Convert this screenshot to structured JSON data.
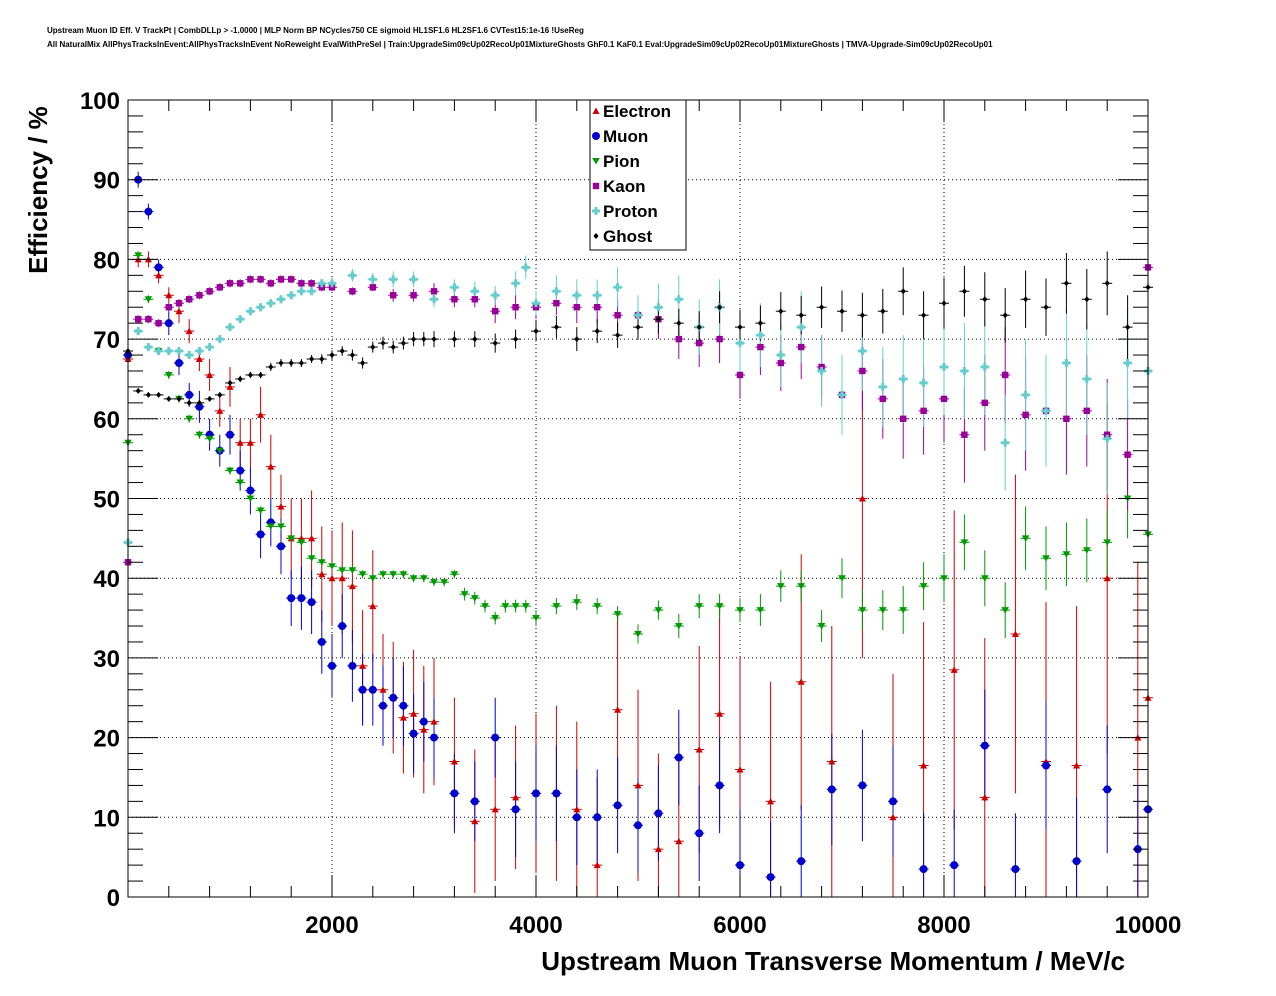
{
  "header": {
    "line1": "Upstream Muon ID Eff. V TrackPt | CombDLLp > -1.0000 | MLP Norm BP NCycles750 CE sigmoid HL1SF1.6 HL2SF1.6 CVTest15:1e-16 !UseReg",
    "line2": "All NaturalMix AllPhysTracksInEvent:AllPhysTracksInEvent NoReweight EvalWithPreSel | Train:UpgradeSim09cUp02RecoUp01MixtureGhosts GhF0.1 KaF0.1 Eval:UpgradeSim09cUp02RecoUp01MixtureGhosts | TMVA-Upgrade-Sim09cUp02RecoUp01"
  },
  "chart_data": {
    "type": "scatter",
    "xlabel": "Upstream Muon Transverse Momentum / MeV/c",
    "ylabel": "Efficiency / %",
    "xlim": [
      0,
      10000
    ],
    "ylim": [
      0,
      100
    ],
    "x_ticks": [
      2000,
      4000,
      6000,
      8000,
      10000
    ],
    "y_ticks": [
      0,
      10,
      20,
      30,
      40,
      50,
      60,
      70,
      80,
      90,
      100
    ],
    "grid": true,
    "legend_position": "top-center",
    "series": [
      {
        "name": "Electron",
        "color": "#cc0000",
        "marker": "triangle-up",
        "x": [
          0,
          100,
          200,
          300,
          400,
          500,
          600,
          700,
          800,
          900,
          1000,
          1100,
          1200,
          1300,
          1400,
          1500,
          1600,
          1700,
          1800,
          1900,
          2000,
          2100,
          2200,
          2300,
          2400,
          2500,
          2600,
          2700,
          2800,
          2900,
          3000,
          3200,
          3400,
          3600,
          3800,
          4000,
          4200,
          4400,
          4600,
          4800,
          5000,
          5200,
          5400,
          5600,
          5800,
          6000,
          6300,
          6600,
          6900,
          7200,
          7500,
          7800,
          8100,
          8400,
          8700,
          9000,
          9300,
          9600,
          9900,
          10000
        ],
        "y": [
          67.5,
          80,
          80,
          78,
          75.5,
          73.5,
          71,
          67.5,
          65.5,
          61,
          64,
          57,
          57,
          60.5,
          54,
          49,
          45,
          45,
          45,
          40.5,
          40,
          40,
          39,
          29,
          36.5,
          26,
          25,
          22.5,
          23,
          21,
          22,
          17,
          9.5,
          11,
          12.5,
          13,
          13,
          11,
          4,
          23.5,
          14,
          6,
          7,
          18.5,
          23,
          16,
          12,
          27,
          17,
          50,
          10,
          16.5,
          28.5,
          12.5,
          33,
          17,
          16.5,
          40,
          20,
          25
        ],
        "err": [
          3,
          1,
          1,
          1,
          1,
          1.5,
          1.5,
          1.5,
          2,
          2,
          2.5,
          3,
          3,
          3.5,
          4,
          4,
          5,
          5,
          6,
          6,
          6,
          7,
          7,
          7,
          7,
          7,
          7,
          7,
          8,
          8,
          8,
          8,
          9,
          9,
          9,
          10,
          11,
          11,
          11,
          12,
          12,
          12,
          13,
          13,
          14,
          14,
          15,
          16,
          17,
          20,
          18,
          18,
          20,
          20,
          20,
          20,
          20,
          22,
          22,
          22
        ]
      },
      {
        "name": "Muon",
        "color": "#0000cc",
        "marker": "circle",
        "x": [
          0,
          100,
          200,
          300,
          400,
          500,
          600,
          700,
          800,
          900,
          1000,
          1100,
          1200,
          1300,
          1400,
          1500,
          1600,
          1700,
          1800,
          1900,
          2000,
          2100,
          2200,
          2300,
          2400,
          2500,
          2600,
          2700,
          2800,
          2900,
          3000,
          3200,
          3400,
          3600,
          3800,
          4000,
          4200,
          4400,
          4600,
          4800,
          5000,
          5200,
          5400,
          5600,
          5800,
          6000,
          6300,
          6600,
          6900,
          7200,
          7500,
          7800,
          8100,
          8400,
          8700,
          9000,
          9300,
          9600,
          9900,
          10000
        ],
        "y": [
          68,
          90,
          86,
          79,
          72,
          67,
          63,
          61.5,
          58,
          56,
          58,
          53.5,
          51,
          45.5,
          47,
          44,
          37.5,
          37.5,
          37,
          32,
          29,
          34,
          29,
          26,
          26,
          24,
          25,
          24,
          20.5,
          22,
          20,
          13,
          12,
          20,
          11,
          13,
          13,
          10,
          10,
          11.5,
          9,
          10.5,
          17.5,
          8,
          14,
          4,
          2.5,
          4.5,
          13.5,
          14,
          12,
          3.5,
          4,
          19,
          3.5,
          16.5,
          4.5,
          13.5,
          6,
          11
        ],
        "err": [
          1.5,
          1,
          1,
          1,
          1.5,
          1.5,
          1.5,
          2,
          2,
          2,
          2.5,
          2.5,
          3,
          3,
          3,
          3.5,
          3.5,
          4,
          4,
          4,
          4,
          4,
          4.5,
          4.5,
          4.5,
          5,
          5,
          5,
          5,
          5,
          5,
          5,
          5,
          5,
          6,
          6,
          6,
          6,
          6,
          6,
          6,
          6,
          6,
          6,
          6,
          7,
          7,
          7,
          7,
          7,
          7,
          7,
          7,
          7,
          7,
          8,
          8,
          8,
          8,
          8
        ]
      },
      {
        "name": "Pion",
        "color": "#009900",
        "marker": "triangle-down",
        "x": [
          0,
          100,
          200,
          300,
          400,
          500,
          600,
          700,
          800,
          900,
          1000,
          1100,
          1200,
          1300,
          1400,
          1500,
          1600,
          1700,
          1800,
          1900,
          2000,
          2100,
          2200,
          2300,
          2400,
          2500,
          2600,
          2700,
          2800,
          2900,
          3000,
          3100,
          3200,
          3300,
          3400,
          3500,
          3600,
          3700,
          3800,
          3900,
          4000,
          4200,
          4400,
          4600,
          4800,
          5000,
          5200,
          5400,
          5600,
          5800,
          6000,
          6200,
          6400,
          6600,
          6800,
          7000,
          7200,
          7400,
          7600,
          7800,
          8000,
          8200,
          8400,
          8600,
          8800,
          9000,
          9200,
          9400,
          9600,
          9800,
          10000
        ],
        "y": [
          57,
          80.5,
          75,
          68.5,
          65.5,
          62.5,
          60,
          58,
          57.5,
          56,
          53.5,
          52,
          50,
          48.5,
          46.5,
          46.5,
          45,
          44.5,
          42.5,
          42,
          41.5,
          41,
          41,
          40.5,
          40,
          40.5,
          40.5,
          40.5,
          40,
          40,
          39.5,
          39.5,
          40.5,
          38,
          37.5,
          36.5,
          35,
          36.5,
          36.5,
          36.5,
          35,
          36.5,
          37,
          36.5,
          35.5,
          33,
          36,
          34,
          36.5,
          36.5,
          36,
          36,
          39,
          39,
          34,
          40,
          36,
          36,
          36,
          39,
          40,
          44.5,
          40,
          36,
          45,
          42.5,
          43,
          43.5,
          44.5,
          50,
          45.5
        ],
        "err": [
          1,
          0.5,
          0.5,
          0.5,
          0.5,
          0.5,
          0.5,
          0.5,
          0.5,
          0.5,
          0.5,
          0.5,
          0.5,
          0.5,
          0.5,
          0.5,
          0.5,
          0.5,
          0.5,
          0.5,
          0.5,
          0.5,
          0.5,
          0.5,
          0.5,
          0.5,
          0.5,
          0.5,
          0.5,
          0.5,
          0.5,
          0.5,
          0.5,
          0.8,
          0.8,
          0.8,
          0.8,
          0.8,
          0.8,
          0.8,
          1,
          1,
          1,
          1,
          1,
          1.2,
          1.2,
          1.5,
          1.5,
          1.5,
          1.5,
          2,
          2,
          2,
          2,
          2.5,
          2.5,
          2.5,
          3,
          3,
          3,
          3.5,
          3.5,
          3.5,
          4,
          4,
          4,
          4,
          4,
          5,
          5
        ]
      },
      {
        "name": "Kaon",
        "color": "#990099",
        "marker": "square",
        "x": [
          0,
          100,
          200,
          300,
          400,
          500,
          600,
          700,
          800,
          900,
          1000,
          1100,
          1200,
          1300,
          1400,
          1500,
          1600,
          1700,
          1800,
          1900,
          2000,
          2200,
          2400,
          2600,
          2800,
          3000,
          3200,
          3400,
          3600,
          3800,
          4000,
          4200,
          4400,
          4600,
          4800,
          5000,
          5200,
          5400,
          5600,
          5800,
          6000,
          6200,
          6400,
          6600,
          6800,
          7000,
          7200,
          7400,
          7600,
          7800,
          8000,
          8200,
          8400,
          8600,
          8800,
          9000,
          9200,
          9400,
          9600,
          9800,
          10000
        ],
        "y": [
          42,
          72.5,
          72.5,
          72,
          74,
          74.5,
          75,
          75.5,
          76,
          76.5,
          77,
          77,
          77.5,
          77.5,
          77,
          77.5,
          77.5,
          77,
          77,
          76.5,
          76.5,
          76,
          76.5,
          75.5,
          75.5,
          76,
          75,
          75,
          73.5,
          74,
          74,
          74.5,
          74,
          74,
          73,
          73,
          72.5,
          70,
          69.5,
          70,
          65.5,
          69,
          67,
          69,
          66.5,
          63,
          66,
          62.5,
          60,
          61,
          62.5,
          58,
          62,
          65.5,
          60.5,
          61,
          60,
          61,
          58,
          55.5,
          79
        ],
        "err": [
          0.5,
          0.5,
          0.5,
          0.5,
          0.5,
          0.5,
          0.5,
          0.5,
          0.5,
          0.5,
          0.5,
          0.5,
          0.5,
          0.5,
          0.5,
          0.5,
          0.5,
          0.5,
          0.5,
          0.5,
          0.5,
          0.5,
          0.5,
          0.8,
          0.8,
          1,
          1,
          1,
          1.5,
          1.5,
          1.5,
          1.5,
          2,
          2,
          2,
          2,
          2.5,
          2.5,
          3,
          3,
          3,
          3.5,
          3.5,
          4,
          4,
          4.5,
          5,
          5,
          5,
          5.5,
          5.5,
          6,
          6,
          6,
          7,
          7,
          7,
          7,
          7,
          7,
          6
        ]
      },
      {
        "name": "Proton",
        "color": "#66cccc",
        "marker": "cross",
        "x": [
          0,
          100,
          200,
          300,
          400,
          500,
          600,
          700,
          800,
          900,
          1000,
          1100,
          1200,
          1300,
          1400,
          1500,
          1600,
          1700,
          1800,
          1900,
          2000,
          2200,
          2400,
          2600,
          2800,
          3000,
          3200,
          3400,
          3600,
          3800,
          3900,
          4000,
          4200,
          4400,
          4600,
          4800,
          5000,
          5200,
          5400,
          5600,
          5800,
          6000,
          6200,
          6400,
          6600,
          6800,
          7000,
          7200,
          7400,
          7600,
          7800,
          8000,
          8200,
          8400,
          8600,
          8800,
          9000,
          9200,
          9400,
          9600,
          9800,
          10000
        ],
        "y": [
          44.5,
          71,
          69,
          68.5,
          68.5,
          68.5,
          68,
          68.5,
          69,
          70,
          71.5,
          72.5,
          73.5,
          74,
          74.5,
          75,
          75.5,
          76,
          76,
          77,
          77,
          78,
          77.5,
          77.5,
          77.5,
          75,
          76.5,
          76,
          75.5,
          77,
          79,
          74.5,
          76,
          75.5,
          75.5,
          76.5,
          73,
          74,
          75,
          71.5,
          74,
          69.5,
          70.5,
          68,
          71.5,
          66,
          63,
          68.5,
          64,
          65,
          64.5,
          66.5,
          66,
          66.5,
          57,
          63,
          61,
          67,
          65,
          57.5,
          67,
          66
        ],
        "err": [
          0.5,
          0.5,
          0.5,
          0.5,
          0.5,
          0.5,
          0.5,
          0.5,
          0.5,
          0.5,
          0.5,
          0.5,
          0.5,
          0.5,
          0.5,
          0.5,
          0.5,
          0.5,
          0.5,
          0.5,
          0.8,
          0.8,
          0.8,
          1,
          1,
          1,
          1,
          1.2,
          1.2,
          1.5,
          1.5,
          1.5,
          2,
          2,
          2,
          2.5,
          2.5,
          3,
          3,
          3.5,
          3.5,
          4,
          4,
          4,
          4.5,
          4.5,
          5,
          5,
          5,
          5.5,
          5.5,
          6,
          6,
          6,
          6,
          7,
          7,
          7,
          7,
          7,
          7,
          7
        ]
      },
      {
        "name": "Ghost",
        "color": "#000000",
        "marker": "diamond",
        "x": [
          0,
          100,
          200,
          300,
          400,
          500,
          600,
          700,
          800,
          900,
          1000,
          1100,
          1200,
          1300,
          1400,
          1500,
          1600,
          1700,
          1800,
          1900,
          2000,
          2100,
          2200,
          2300,
          2400,
          2500,
          2600,
          2700,
          2800,
          2900,
          3000,
          3200,
          3400,
          3600,
          3800,
          4000,
          4200,
          4400,
          4600,
          4800,
          5000,
          5200,
          5400,
          5600,
          5800,
          6000,
          6200,
          6400,
          6600,
          6800,
          7000,
          7200,
          7400,
          7600,
          7800,
          8000,
          8200,
          8400,
          8600,
          8800,
          9000,
          9200,
          9400,
          9600,
          9800,
          10000
        ],
        "y": [
          68.5,
          63.5,
          63,
          63,
          62.5,
          62.5,
          62,
          62,
          62.5,
          63,
          64.5,
          65,
          65.5,
          65.5,
          66.5,
          67,
          67,
          67,
          67.5,
          67.5,
          68,
          68.5,
          68,
          67,
          69,
          69.5,
          69,
          69.5,
          70,
          70,
          70,
          70,
          70,
          69.5,
          70,
          71,
          71.5,
          70,
          71,
          70.5,
          71.5,
          72.5,
          72,
          71.5,
          74,
          71.5,
          72,
          73.5,
          73,
          74,
          73.5,
          73,
          73.5,
          76,
          73,
          74.5,
          76,
          75,
          73,
          75,
          74,
          77,
          75,
          77,
          71.5,
          76.5
        ],
        "err": [
          1.5,
          0.3,
          0.3,
          0.3,
          0.3,
          0.3,
          0.3,
          0.3,
          0.3,
          0.3,
          0.4,
          0.4,
          0.4,
          0.4,
          0.5,
          0.5,
          0.5,
          0.5,
          0.5,
          0.6,
          0.6,
          0.6,
          0.7,
          0.7,
          0.7,
          0.8,
          0.8,
          0.8,
          0.9,
          0.9,
          1,
          1,
          1,
          1.2,
          1.2,
          1.3,
          1.4,
          1.5,
          1.5,
          1.6,
          1.6,
          1.8,
          1.8,
          2,
          2,
          2.2,
          2.2,
          2.4,
          2.4,
          2.6,
          2.6,
          2.8,
          2.8,
          3,
          3,
          3.2,
          3.2,
          3.4,
          3.4,
          3.6,
          3.6,
          3.8,
          3.8,
          4,
          4,
          4
        ]
      }
    ]
  }
}
